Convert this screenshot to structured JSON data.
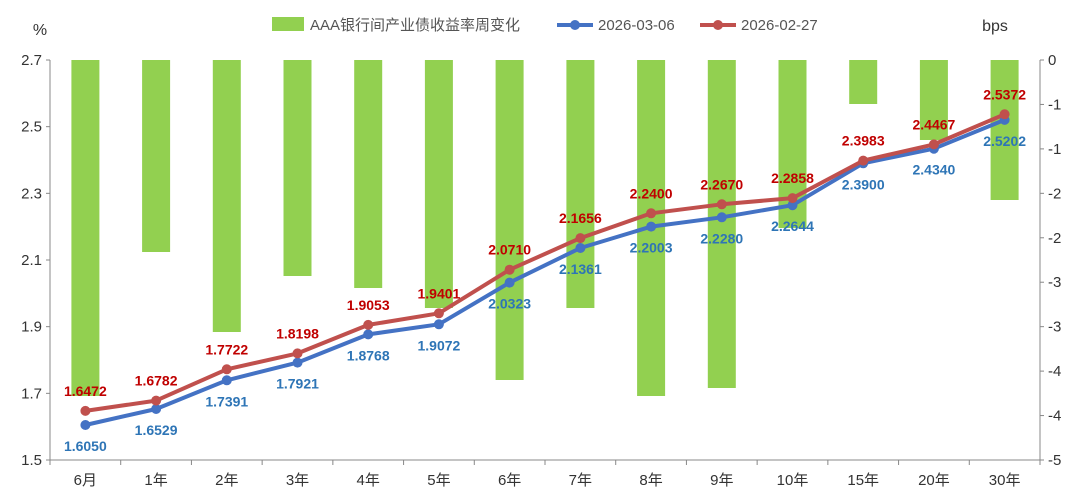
{
  "chart_data": {
    "type": "bar+line",
    "categories": [
      "6月",
      "1年",
      "2年",
      "3年",
      "4年",
      "5年",
      "6年",
      "7年",
      "8年",
      "9年",
      "10年",
      "15年",
      "20年",
      "30年"
    ],
    "left_axis": {
      "unit": "%",
      "ylim": [
        1.5,
        2.7
      ],
      "ticks": [
        "2.7",
        "2.5",
        "2.3",
        "2.1",
        "1.9",
        "1.7",
        "1.5"
      ]
    },
    "right_axis": {
      "unit": "bps",
      "ylim": [
        -5,
        0
      ],
      "ticks": [
        "0",
        "-1",
        "-1",
        "-2",
        "-2",
        "-3",
        "-3",
        "-4",
        "-4",
        "-5"
      ]
    },
    "series": [
      {
        "name": "AAA银行间产业债收益率周变化",
        "type": "bar",
        "axis": "right",
        "color": "#92D050",
        "values": [
          -4.2,
          -2.4,
          -3.4,
          -2.7,
          -2.85,
          -3.1,
          -4.0,
          -3.1,
          -4.2,
          -4.1,
          -2.1,
          -0.55,
          -1.0,
          -1.75
        ]
      },
      {
        "name": "2026-03-06",
        "type": "line",
        "axis": "left",
        "color": "#4472C4",
        "label_color": "#2E75B6",
        "values": [
          1.605,
          1.6529,
          1.7391,
          1.7921,
          1.8768,
          1.9072,
          2.0323,
          2.1361,
          2.2003,
          2.228,
          2.2644,
          2.39,
          2.434,
          2.5202
        ],
        "labels": [
          "1.6050",
          "1.6529",
          "1.7391",
          "1.7921",
          "1.8768",
          "1.9072",
          "2.0323",
          "2.1361",
          "2.2003",
          "2.2280",
          "2.2644",
          "2.3900",
          "2.4340",
          "2.5202"
        ]
      },
      {
        "name": "2026-02-27",
        "type": "line",
        "axis": "left",
        "color": "#C0504D",
        "label_color": "#C00000",
        "values": [
          1.6472,
          1.6782,
          1.7722,
          1.8198,
          1.9053,
          1.9401,
          2.071,
          2.1656,
          2.24,
          2.267,
          2.2858,
          2.3983,
          2.4467,
          2.5372
        ],
        "labels": [
          "1.6472",
          "1.6782",
          "1.7722",
          "1.8198",
          "1.9053",
          "1.9401",
          "2.0710",
          "2.1656",
          "2.2400",
          "2.2670",
          "2.2858",
          "2.3983",
          "2.4467",
          "2.5372"
        ]
      }
    ],
    "legend": {
      "position": "top-center",
      "entries": [
        "AAA银行间产业债收益率周变化",
        "2026-03-06",
        "2026-02-27"
      ]
    }
  }
}
